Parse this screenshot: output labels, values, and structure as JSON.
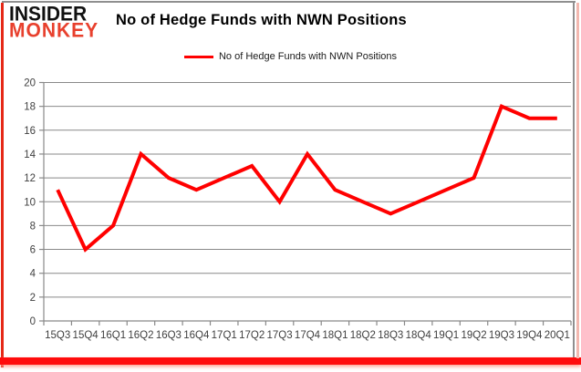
{
  "logo": {
    "line1": "INSIDER",
    "line2": "MONKEY"
  },
  "header": {
    "title": "No of Hedge Funds with NWN Positions"
  },
  "legend": {
    "label": "No of Hedge Funds with NWN Positions"
  },
  "colors": {
    "series": "#ff0000",
    "grid": "#898989",
    "axis": "#898989",
    "axis_text": "#3f3f3f",
    "logo_accent": "#e8402d",
    "logo_text": "#111111",
    "frame_red": "#ff0c0c"
  },
  "chart_data": {
    "type": "line",
    "title": "No of Hedge Funds with NWN Positions",
    "categories": [
      "15Q3",
      "15Q4",
      "16Q1",
      "16Q2",
      "16Q3",
      "16Q4",
      "17Q1",
      "17Q2",
      "17Q3",
      "17Q4",
      "18Q1",
      "18Q2",
      "18Q3",
      "18Q4",
      "19Q1",
      "19Q2",
      "19Q3",
      "19Q4",
      "20Q1"
    ],
    "values": [
      11,
      6,
      8,
      14,
      12,
      11,
      12,
      13,
      10,
      14,
      11,
      10,
      9,
      10,
      11,
      12,
      18,
      17,
      17
    ],
    "series_name": "No of Hedge Funds with NWN Positions",
    "xlabel": "",
    "ylabel": "",
    "ylim": [
      0,
      20
    ],
    "ytick_step": 2,
    "grid": true,
    "legend_position": "top"
  }
}
